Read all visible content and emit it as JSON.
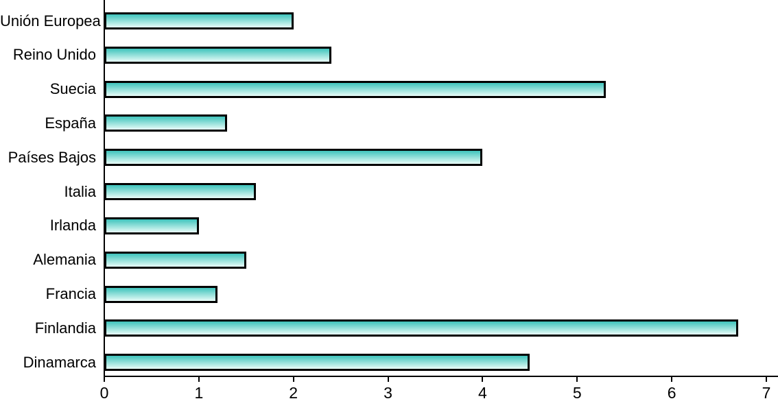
{
  "chart_data": {
    "type": "bar",
    "orientation": "horizontal",
    "title": "",
    "xlabel": "",
    "ylabel": "",
    "categories": [
      "Unión Europea",
      "Reino Unido",
      "Suecia",
      "España",
      "Países Bajos",
      "Italia",
      "Irlanda",
      "Alemania",
      "Francia",
      "Finlandia",
      "Dinamarca"
    ],
    "values": [
      2.0,
      2.4,
      5.3,
      1.3,
      4.0,
      1.6,
      1.0,
      1.5,
      1.2,
      6.7,
      4.5
    ],
    "xlim": [
      0,
      7
    ],
    "x_ticks": [
      "0",
      "1",
      "2",
      "3",
      "4",
      "5",
      "6",
      "7"
    ],
    "grid": false,
    "legend": false,
    "colors": {
      "bar_gradient_top": "#3FC4BC",
      "bar_gradient_bottom": "#E8FCF8",
      "bar_border": "#000000",
      "axis": "#000000",
      "text": "#000000",
      "background": "#FFFFFF"
    }
  }
}
